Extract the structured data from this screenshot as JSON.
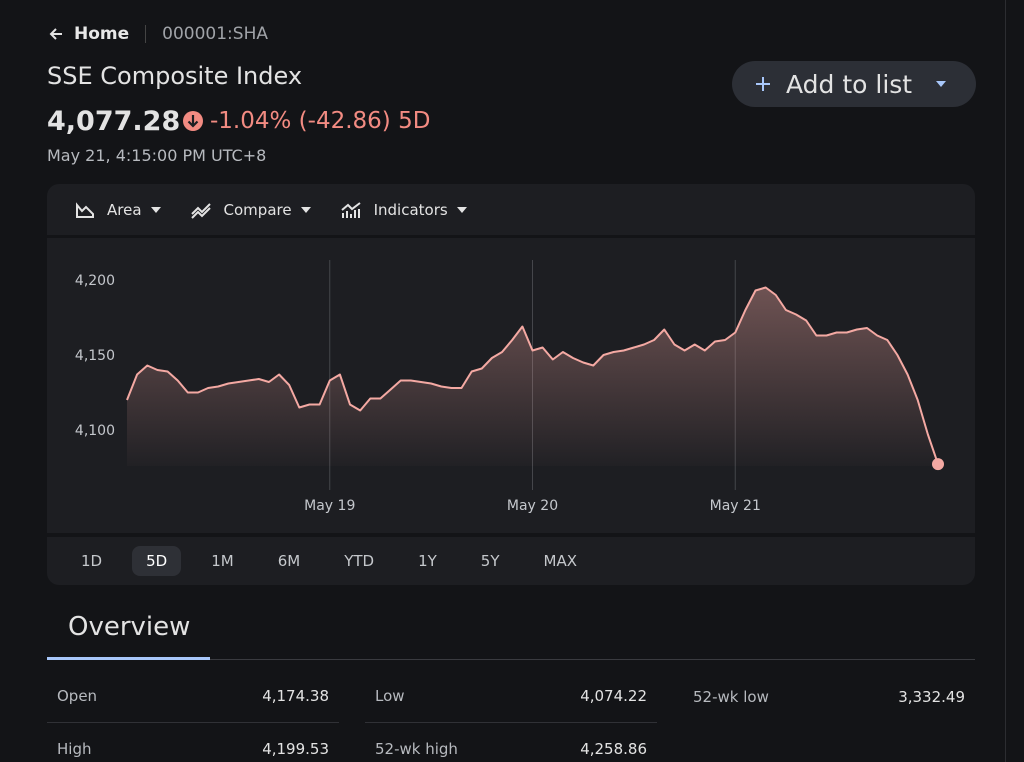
{
  "breadcrumb": {
    "home": "Home",
    "ticker": "000001:SHA"
  },
  "header": {
    "title": "SSE Composite Index",
    "price": "4,077.28",
    "change": "-1.04% (-42.86) 5D",
    "timestamp": "May 21, 4:15:00 PM UTC+8",
    "add_button": "Add to list"
  },
  "toolbar": [
    "Area",
    "Compare",
    "Indicators"
  ],
  "chart_data": {
    "type": "area",
    "color": "#f4a9a3",
    "values": [
      4120,
      4137,
      4143,
      4140,
      4139,
      4133,
      4125,
      4125,
      4128,
      4129,
      4131,
      4132,
      4133,
      4134,
      4132,
      4137,
      4130,
      4115,
      4117,
      4117,
      4133,
      4137,
      4117,
      4113,
      4121,
      4121,
      4127,
      4133,
      4133,
      4132,
      4131,
      4129,
      4128,
      4128,
      4139,
      4141,
      4148,
      4152,
      4160,
      4169,
      4153,
      4155,
      4147,
      4152,
      4148,
      4145,
      4143,
      4150,
      4152,
      4153,
      4155,
      4157,
      4160,
      4167,
      4157,
      4153,
      4157,
      4153,
      4159,
      4160,
      4165,
      4180,
      4193,
      4195,
      4190,
      4180,
      4177,
      4173,
      4163,
      4163,
      4165,
      4165,
      4167,
      4168,
      4163,
      4160,
      4150,
      4137,
      4120,
      4097,
      4077.28
    ],
    "xlim": [
      0,
      80
    ],
    "xticks": [
      {
        "value": 20,
        "label": "May 19"
      },
      {
        "value": 40,
        "label": "May 20"
      },
      {
        "value": 60,
        "label": "May 21"
      }
    ],
    "ylim": [
      4076,
      4215
    ],
    "yticks": [
      {
        "value": 4100,
        "label": "4,100"
      },
      {
        "value": 4150,
        "label": "4,150"
      },
      {
        "value": 4200,
        "label": "4,200"
      }
    ]
  },
  "ranges": {
    "options": [
      "1D",
      "5D",
      "1M",
      "6M",
      "YTD",
      "1Y",
      "5Y",
      "MAX"
    ],
    "selected": "5D"
  },
  "overview": {
    "tab": "Overview",
    "columns": [
      [
        {
          "label": "Open",
          "value": "4,174.38"
        },
        {
          "label": "High",
          "value": "4,199.53"
        }
      ],
      [
        {
          "label": "Low",
          "value": "4,074.22"
        },
        {
          "label": "52-wk high",
          "value": "4,258.86"
        }
      ],
      [
        {
          "label": "52-wk low",
          "value": "3,332.49"
        }
      ]
    ]
  }
}
